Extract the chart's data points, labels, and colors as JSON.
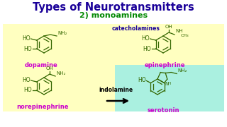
{
  "title": "Types of Neurotransmitters",
  "subtitle": "2) monoamines",
  "title_color": "#1a0099",
  "subtitle_color": "#008800",
  "bg_color": "#ffffff",
  "catecholamine_box_color": "#ffffc0",
  "serotonin_box_color": "#aaf0e0",
  "catecholamines_label": "catecholamines",
  "catecholamines_label_color": "#1a0099",
  "indolamine_label": "indolamine",
  "indolamine_label_color": "#000000",
  "dopamine_label": "dopamine",
  "dopamine_label_color": "#cc00cc",
  "epinephrine_label": "epinephrine",
  "epinephrine_label_color": "#cc00cc",
  "norepinephrine_label": "norepinephrine",
  "norepinephrine_label_color": "#cc00cc",
  "serotonin_label": "serotonin",
  "serotonin_label_color": "#cc00cc",
  "structure_color": "#336600",
  "arrow_color": "#000000"
}
